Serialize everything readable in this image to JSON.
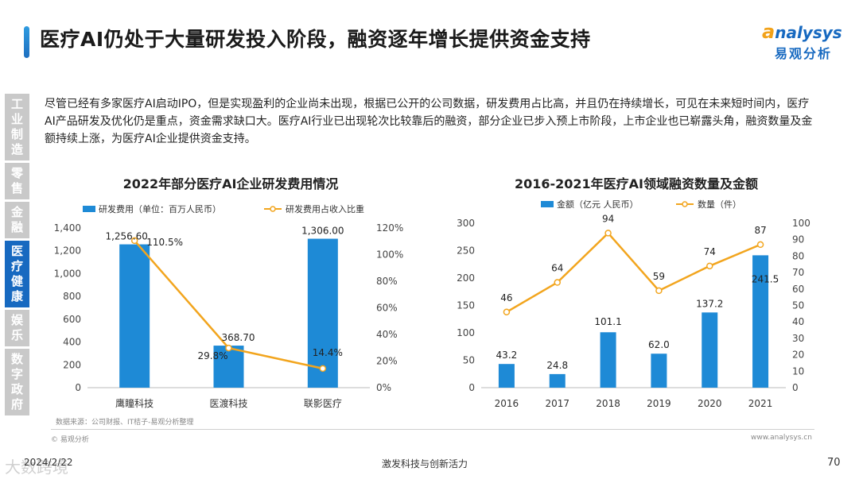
{
  "header": {
    "title": "医疗AI仍处于大量研发投入阶段，融资逐年增长提供资金支持",
    "logo_en_first": "a",
    "logo_en_rest": "nalysys",
    "logo_cn": "易观分析"
  },
  "sidebar": {
    "items": [
      {
        "label": "工业制造",
        "active": false
      },
      {
        "label": "零售",
        "active": false
      },
      {
        "label": "金融",
        "active": false
      },
      {
        "label": "医疗健康",
        "active": true
      },
      {
        "label": "娱乐",
        "active": false
      },
      {
        "label": "数字政府",
        "active": false
      }
    ]
  },
  "intro": "尽管已经有多家医疗AI启动IPO，但是实现盈利的企业尚未出现，根据已公开的公司数据，研发费用占比高，并且仍在持续增长，可见在未来短时间内，医疗AI产品研发及优化仍是重点，资金需求缺口大。医疗AI行业已出现轮次比较靠后的融资，部分企业已步入预上市阶段，上市企业也已崭露头角，融资数量及金额持续上涨，为医疗AI企业提供资金支持。",
  "chart_data": [
    {
      "type": "bar",
      "title": "2022年部分医疗AI企业研发费用情况",
      "categories": [
        "鹰瞳科技",
        "医渡科技",
        "联影医疗"
      ],
      "series": [
        {
          "name": "研发费用（单位：百万人民币）",
          "type": "bar",
          "axis": "left",
          "values": [
            1256.6,
            368.7,
            1306.0
          ],
          "labels": [
            "1,256.60",
            "368.70",
            "1,306.00"
          ]
        },
        {
          "name": "研发费用占收入比重",
          "type": "line",
          "axis": "right",
          "values": [
            110.5,
            29.8,
            14.4
          ],
          "labels": [
            "110.5%",
            "29.8%",
            "14.4%"
          ]
        }
      ],
      "ylim_left": [
        0,
        1400
      ],
      "yticks_left": [
        "0",
        "200",
        "400",
        "600",
        "800",
        "1,000",
        "1,200",
        "1,400"
      ],
      "ylim_right": [
        0,
        120
      ],
      "yticks_right": [
        "0%",
        "20%",
        "40%",
        "60%",
        "80%",
        "100%",
        "120%"
      ],
      "colors": {
        "bar": "#1e8ad6",
        "line": "#f2a51e"
      }
    },
    {
      "type": "bar",
      "title": "2016-2021年医疗AI领域融资数量及金额",
      "categories": [
        "2016",
        "2017",
        "2018",
        "2019",
        "2020",
        "2021"
      ],
      "series": [
        {
          "name": "金额（亿元 人民币）",
          "type": "bar",
          "axis": "left",
          "values": [
            43.2,
            24.8,
            101.1,
            62.0,
            137.2,
            241.5
          ],
          "labels": [
            "43.2",
            "24.8",
            "101.1",
            "62.0",
            "137.2",
            "241.5"
          ]
        },
        {
          "name": "数量（件）",
          "type": "line",
          "axis": "right",
          "values": [
            46,
            64,
            94,
            59,
            74,
            87
          ],
          "labels": [
            "46",
            "64",
            "94",
            "59",
            "74",
            "87"
          ]
        }
      ],
      "ylim_left": [
        0,
        300
      ],
      "yticks_left": [
        "0",
        "50",
        "100",
        "150",
        "200",
        "250",
        "300"
      ],
      "ylim_right": [
        0,
        100
      ],
      "yticks_right": [
        "0",
        "10",
        "20",
        "30",
        "40",
        "50",
        "60",
        "70",
        "80",
        "90",
        "100"
      ],
      "colors": {
        "bar": "#1e8ad6",
        "line": "#f2a51e"
      }
    }
  ],
  "footer": {
    "source": "数据来源：公司财报、IT桔子-易观分析整理",
    "copyright": "© 易观分析",
    "url": "www.analysys.cn",
    "date": "2024/2/22",
    "watermark": "大数跨境",
    "center": "激发科技与创新活力",
    "page": "70"
  }
}
